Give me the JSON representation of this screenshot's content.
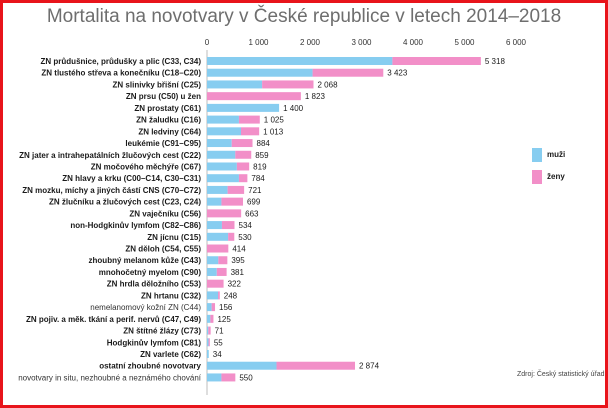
{
  "chart_data": {
    "type": "bar",
    "orientation": "horizontal",
    "stacked": true,
    "title": "Mortalita na novotvary v České republice v letech 2014–2018",
    "source": "Zdroj: Český statistický úřad",
    "xlim": [
      0,
      6000
    ],
    "xticks": [
      "0",
      "1 000",
      "2 000",
      "3 000",
      "4 000",
      "5 000",
      "6 000"
    ],
    "colors": {
      "muzi": "#87cdf0",
      "zeny": "#f28fc8"
    },
    "legend": {
      "position": "right",
      "entries": [
        "muži",
        "ženy"
      ]
    },
    "categories": [
      {
        "label": "ZN průdušnice, průdušky a plic (C33, C34)",
        "muzi": 3600,
        "zeny": 1718,
        "total": "5 318",
        "bold": true
      },
      {
        "label": "ZN tlustého střeva a konečníku (C18–C20)",
        "muzi": 2050,
        "zeny": 1373,
        "total": "3 423",
        "bold": true
      },
      {
        "label": "ZN slinivky břišní (C25)",
        "muzi": 1070,
        "zeny": 998,
        "total": "2 068",
        "bold": true
      },
      {
        "label": "ZN prsu (C50) u žen",
        "muzi": 0,
        "zeny": 1823,
        "total": "1 823",
        "bold": true
      },
      {
        "label": "ZN prostaty (C61)",
        "muzi": 1400,
        "zeny": 0,
        "total": "1 400",
        "bold": true
      },
      {
        "label": "ZN žaludku (C16)",
        "muzi": 620,
        "zeny": 405,
        "total": "1 025",
        "bold": true
      },
      {
        "label": "ZN ledviny (C64)",
        "muzi": 660,
        "zeny": 353,
        "total": "1 013",
        "bold": true
      },
      {
        "label": "leukémie (C91–C95)",
        "muzi": 480,
        "zeny": 404,
        "total": "884",
        "bold": true
      },
      {
        "label": "ZN jater a intrahepatálních žlučových cest (C22)",
        "muzi": 550,
        "zeny": 309,
        "total": "859",
        "bold": true
      },
      {
        "label": "ZN močového měchýře (C67)",
        "muzi": 580,
        "zeny": 239,
        "total": "819",
        "bold": true
      },
      {
        "label": "ZN hlavy a krku (C00–C14, C30–C31)",
        "muzi": 620,
        "zeny": 164,
        "total": "784",
        "bold": true
      },
      {
        "label": "ZN mozku, míchy a jiných částí CNS (C70–C72)",
        "muzi": 400,
        "zeny": 321,
        "total": "721",
        "bold": true
      },
      {
        "label": "ZN žlučníku a žlučových cest (C23, C24)",
        "muzi": 280,
        "zeny": 419,
        "total": "699",
        "bold": true
      },
      {
        "label": "ZN vaječníku (C56)",
        "muzi": 0,
        "zeny": 663,
        "total": "663",
        "bold": true
      },
      {
        "label": "non-Hodgkinův lymfom (C82–C86)",
        "muzi": 290,
        "zeny": 244,
        "total": "534",
        "bold": true
      },
      {
        "label": "ZN jícnu (C15)",
        "muzi": 410,
        "zeny": 120,
        "total": "530",
        "bold": true
      },
      {
        "label": "ZN děloh (C54, C55)",
        "muzi": 0,
        "zeny": 414,
        "total": "414",
        "bold": true
      },
      {
        "label": "zhoubný melanom kůže (C43)",
        "muzi": 220,
        "zeny": 175,
        "total": "395",
        "bold": true
      },
      {
        "label": "mnohočetný myelom (C90)",
        "muzi": 190,
        "zeny": 191,
        "total": "381",
        "bold": true
      },
      {
        "label": "ZN hrdla děložního (C53)",
        "muzi": 0,
        "zeny": 322,
        "total": "322",
        "bold": true
      },
      {
        "label": "ZN hrtanu (C32)",
        "muzi": 215,
        "zeny": 33,
        "total": "248",
        "bold": true
      },
      {
        "label": "nemelanomový kožní ZN (C44)",
        "muzi": 90,
        "zeny": 66,
        "total": "156",
        "bold": false
      },
      {
        "label": "ZN pojiv. a měk. tkání a perif. nervů (C47, C49)",
        "muzi": 65,
        "zeny": 60,
        "total": "125",
        "bold": true
      },
      {
        "label": "ZN štítné žlázy (C73)",
        "muzi": 25,
        "zeny": 46,
        "total": "71",
        "bold": true
      },
      {
        "label": "Hodgkinův lymfom (C81)",
        "muzi": 30,
        "zeny": 25,
        "total": "55",
        "bold": true
      },
      {
        "label": "ZN varlete (C62)",
        "muzi": 34,
        "zeny": 0,
        "total": "34",
        "bold": true
      },
      {
        "label": "ostatní zhoubné novotvary",
        "muzi": 1350,
        "zeny": 1524,
        "total": "2 874",
        "bold": true
      },
      {
        "label": "novotvary in situ, nezhoubné a neznámého chování",
        "muzi": 280,
        "zeny": 270,
        "total": "550",
        "bold": false
      }
    ]
  }
}
